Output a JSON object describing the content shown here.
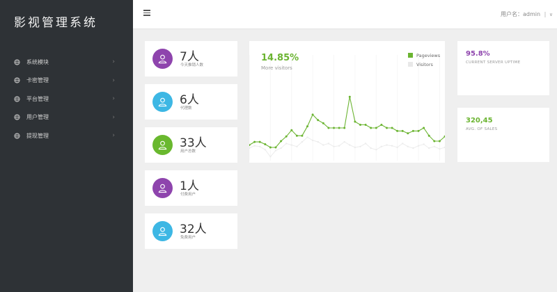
{
  "app": {
    "title": "影视管理系统"
  },
  "sidebar": {
    "items": [
      {
        "label": "系统模块",
        "icon": "globe-icon"
      },
      {
        "label": "卡密管理",
        "icon": "globe-icon"
      },
      {
        "label": "平台管理",
        "icon": "globe-icon"
      },
      {
        "label": "用户管理",
        "icon": "globe-icon"
      },
      {
        "label": "提现管理",
        "icon": "globe-icon"
      }
    ],
    "chevron": "›"
  },
  "header": {
    "user_label": "用户名：admin",
    "separator": "|",
    "caret": "∨"
  },
  "stats": [
    {
      "value": "7人",
      "label": "今天推销人数",
      "color": "#8e44ad"
    },
    {
      "value": "6人",
      "label": "代理数",
      "color": "#3db7e4"
    },
    {
      "value": "33人",
      "label": "用户总数",
      "color": "#69b82e"
    },
    {
      "value": "1人",
      "label": "付费用户",
      "color": "#8e44ad"
    },
    {
      "value": "32人",
      "label": "免费用户",
      "color": "#3db7e4"
    }
  ],
  "chart": {
    "percent": "14.85%",
    "subtitle": "More visitors",
    "legend": [
      {
        "name": "Pageviews",
        "color": "#6bb431"
      },
      {
        "name": "Visitors",
        "color": "#e8e8e8"
      }
    ]
  },
  "chart_data": {
    "type": "line",
    "series": [
      {
        "name": "Pageviews",
        "color": "#6bb431",
        "values": [
          10,
          14,
          14,
          11,
          7,
          7,
          15,
          21,
          29,
          22,
          22,
          34,
          49,
          42,
          38,
          32,
          32,
          32,
          32,
          72,
          40,
          36,
          36,
          32,
          32,
          36,
          32,
          32,
          28,
          28,
          25,
          28,
          28,
          32,
          22,
          15,
          15,
          21
        ]
      },
      {
        "name": "Visitors",
        "color": "#ececec",
        "values": [
          6,
          9,
          8,
          4,
          -5,
          3,
          6,
          12,
          10,
          8,
          14,
          20,
          16,
          14,
          10,
          12,
          8,
          9,
          14,
          10,
          7,
          8,
          12,
          6,
          4,
          8,
          10,
          9,
          7,
          12,
          8,
          6,
          9,
          11,
          6,
          8,
          5,
          7
        ]
      }
    ],
    "ylim": [
      -10,
      90
    ],
    "grid": true
  },
  "info_cards": [
    {
      "value": "95.8%",
      "label": "CURRENT SERVER UPTIME",
      "color": "#8e44ad"
    },
    {
      "value": "320,45",
      "label": "AVG. OF SALES",
      "color": "#6bb431"
    }
  ]
}
